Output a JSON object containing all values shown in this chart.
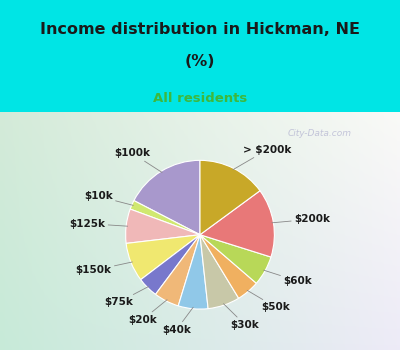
{
  "title_line1": "Income distribution in Hickman, NE",
  "title_line2": "(%)",
  "subtitle": "All residents",
  "title_color": "#1a1a1a",
  "subtitle_color": "#3db83d",
  "bg_top_color": "#00e5e5",
  "bg_chart_color_tl": "#d0ede0",
  "bg_chart_color_tr": "#e8f8f8",
  "bg_chart_color_bl": "#c8e8d8",
  "watermark": "City-Data.com",
  "labels": [
    "$100k",
    "$10k",
    "$125k",
    "$150k",
    "$75k",
    "$20k",
    "$40k",
    "$30k",
    "$50k",
    "$60k",
    "$200k",
    "> $200k"
  ],
  "values": [
    17.5,
    2.0,
    7.5,
    8.5,
    4.5,
    5.5,
    6.5,
    7.0,
    5.0,
    6.5,
    15.0,
    15.0
  ],
  "colors": [
    "#a898cc",
    "#d0e870",
    "#f0b8b8",
    "#f0e870",
    "#7878cc",
    "#f0b878",
    "#90c8e8",
    "#c8c8a8",
    "#f0b060",
    "#b8d858",
    "#e87878",
    "#c8a828"
  ],
  "startangle": 90,
  "label_fontsize": 7.5,
  "label_color": "#1a1a1a"
}
